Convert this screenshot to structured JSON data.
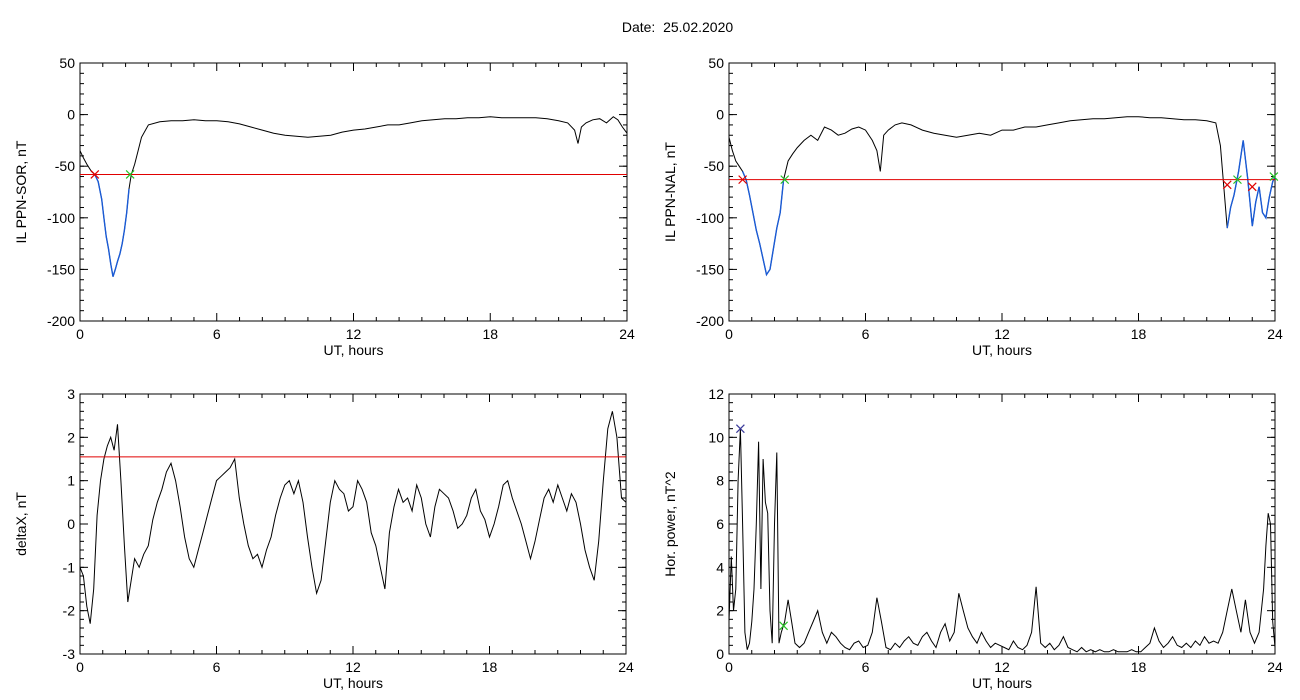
{
  "title": "Date:  25.02.2020",
  "colors": {
    "axis": "#000000",
    "trace": "#000000",
    "substorm_trace": "#1a5bd6",
    "threshold": "#e00000",
    "onset_marker": "#e00000",
    "end_marker": "#22c022",
    "peak_marker": "#3a3a9a"
  },
  "chart_data": [
    {
      "id": "il-sor",
      "type": "line",
      "xlabel": "UT, hours",
      "ylabel": "IL PPN-SOR, nT",
      "xlim": [
        0,
        24
      ],
      "ylim": [
        -200,
        50
      ],
      "xticks": [
        0,
        6,
        12,
        18,
        24
      ],
      "xtick_labels": [
        "0",
        "6",
        "12",
        "18",
        "24"
      ],
      "yticks": [
        -200,
        -150,
        -100,
        -50,
        0,
        50
      ],
      "ytick_labels": [
        "-200",
        "-150",
        "-100",
        "-50",
        "0",
        "50"
      ],
      "threshold": -58,
      "series": [
        {
          "x": [
            0,
            0.15,
            0.3,
            0.5,
            0.65,
            0.8,
            0.95,
            1.05,
            1.15,
            1.25,
            1.35,
            1.45,
            1.55,
            1.65,
            1.75,
            1.85,
            1.95,
            2.05,
            2.15,
            2.25,
            2.4,
            2.55,
            2.7,
            3,
            3.5,
            4,
            4.5,
            5,
            5.5,
            6,
            6.5,
            7,
            7.5,
            8,
            8.5,
            9,
            9.5,
            10,
            10.5,
            11,
            11.5,
            12,
            12.5,
            13,
            13.5,
            14,
            14.5,
            15,
            15.5,
            16,
            16.5,
            17,
            17.5,
            18,
            18.5,
            19,
            19.5,
            20,
            20.5,
            21,
            21.4,
            21.7,
            21.85,
            22,
            22.2,
            22.5,
            22.8,
            23.1,
            23.4,
            23.6,
            23.8,
            24
          ],
          "y": [
            -35,
            -42,
            -48,
            -55,
            -58,
            -65,
            -82,
            -100,
            -118,
            -130,
            -145,
            -157,
            -150,
            -142,
            -135,
            -125,
            -112,
            -95,
            -72,
            -58,
            -48,
            -35,
            -22,
            -10,
            -7,
            -6,
            -6,
            -5,
            -6,
            -6,
            -7,
            -9,
            -12,
            -15,
            -18,
            -20,
            -21,
            -22,
            -21,
            -20,
            -17,
            -15,
            -14,
            -12,
            -10,
            -10,
            -8,
            -6,
            -5,
            -4,
            -4,
            -3,
            -3,
            -2,
            -3,
            -3,
            -3,
            -3,
            -4,
            -6,
            -8,
            -15,
            -28,
            -12,
            -8,
            -5,
            -4,
            -8,
            -2,
            -5,
            -12,
            -18
          ]
        }
      ],
      "markers": [
        {
          "kind": "onset",
          "x": 0.65,
          "y": -58
        },
        {
          "kind": "end",
          "x": 2.2,
          "y": -58
        }
      ],
      "highlight_range": [
        0.65,
        2.2
      ]
    },
    {
      "id": "il-nal",
      "type": "line",
      "xlabel": "UT, hours",
      "ylabel": "IL PPN-NAL, nT",
      "xlim": [
        0,
        24
      ],
      "ylim": [
        -200,
        50
      ],
      "xticks": [
        0,
        6,
        12,
        18,
        24
      ],
      "xtick_labels": [
        "0",
        "6",
        "12",
        "18",
        "24"
      ],
      "yticks": [
        -200,
        -150,
        -100,
        -50,
        0,
        50
      ],
      "ytick_labels": [
        "-200",
        "-150",
        "-100",
        "-50",
        "0",
        "50"
      ],
      "threshold": -63,
      "series": [
        {
          "x": [
            0,
            0.15,
            0.3,
            0.45,
            0.6,
            0.75,
            0.9,
            1.05,
            1.2,
            1.35,
            1.5,
            1.65,
            1.8,
            1.95,
            2.1,
            2.25,
            2.4,
            2.6,
            2.8,
            3,
            3.3,
            3.6,
            3.9,
            4.2,
            4.5,
            4.8,
            5.1,
            5.4,
            5.7,
            6,
            6.3,
            6.5,
            6.65,
            6.8,
            7,
            7.3,
            7.6,
            8,
            8.5,
            9,
            9.5,
            10,
            10.5,
            11,
            11.5,
            12,
            12.5,
            13,
            13.5,
            14,
            14.5,
            15,
            15.5,
            16,
            16.5,
            17,
            17.5,
            18,
            18.5,
            19,
            19.5,
            20,
            20.5,
            21,
            21.4,
            21.6,
            21.75,
            21.9,
            22.05,
            22.2,
            22.4,
            22.6,
            22.8,
            23,
            23.15,
            23.3,
            23.45,
            23.6,
            23.75,
            23.9,
            24
          ],
          "y": [
            -22,
            -35,
            -45,
            -50,
            -55,
            -63,
            -78,
            -95,
            -112,
            -125,
            -140,
            -155,
            -150,
            -130,
            -110,
            -95,
            -63,
            -45,
            -38,
            -32,
            -25,
            -20,
            -25,
            -12,
            -15,
            -20,
            -18,
            -14,
            -12,
            -15,
            -25,
            -35,
            -55,
            -20,
            -15,
            -10,
            -8,
            -10,
            -15,
            -18,
            -20,
            -22,
            -20,
            -18,
            -20,
            -15,
            -15,
            -12,
            -12,
            -10,
            -8,
            -6,
            -5,
            -4,
            -4,
            -3,
            -2,
            -2,
            -3,
            -3,
            -4,
            -5,
            -5,
            -6,
            -8,
            -30,
            -70,
            -110,
            -90,
            -78,
            -55,
            -25,
            -62,
            -108,
            -85,
            -70,
            -95,
            -100,
            -80,
            -65,
            -60
          ]
        }
      ],
      "markers": [
        {
          "kind": "onset",
          "x": 0.6,
          "y": -63
        },
        {
          "kind": "end",
          "x": 2.45,
          "y": -63
        },
        {
          "kind": "onset",
          "x": 21.9,
          "y": -68
        },
        {
          "kind": "end",
          "x": 22.35,
          "y": -63
        },
        {
          "kind": "onset",
          "x": 23.0,
          "y": -70
        },
        {
          "kind": "end",
          "x": 23.95,
          "y": -60
        }
      ],
      "highlight_range": [
        0.6,
        2.45
      ],
      "highlight_range_2": [
        21.9,
        24
      ]
    },
    {
      "id": "deltax",
      "type": "line",
      "xlabel": "UT, hours",
      "ylabel": "deltaX, nT",
      "xlim": [
        0,
        24
      ],
      "ylim": [
        -3,
        3
      ],
      "xticks": [
        0,
        6,
        12,
        18,
        24
      ],
      "xtick_labels": [
        "0",
        "6",
        "12",
        "18",
        "24"
      ],
      "yticks": [
        -3,
        -2,
        -1,
        0,
        1,
        2,
        3
      ],
      "ytick_labels": [
        "-3",
        "-2",
        "-1",
        "0",
        "1",
        "2",
        "3"
      ],
      "threshold": 1.55,
      "series": [
        {
          "x": [
            0,
            0.15,
            0.3,
            0.45,
            0.6,
            0.75,
            0.9,
            1.05,
            1.2,
            1.35,
            1.5,
            1.65,
            1.8,
            1.95,
            2.1,
            2.25,
            2.4,
            2.6,
            2.8,
            3,
            3.2,
            3.4,
            3.6,
            3.8,
            4,
            4.2,
            4.4,
            4.6,
            4.8,
            5,
            5.2,
            5.4,
            5.6,
            5.8,
            6,
            6.2,
            6.4,
            6.6,
            6.8,
            7,
            7.2,
            7.4,
            7.6,
            7.8,
            8,
            8.2,
            8.4,
            8.6,
            8.8,
            9,
            9.2,
            9.4,
            9.6,
            9.8,
            10,
            10.2,
            10.4,
            10.6,
            10.8,
            11,
            11.2,
            11.4,
            11.6,
            11.8,
            12,
            12.2,
            12.4,
            12.6,
            12.8,
            13,
            13.2,
            13.4,
            13.6,
            13.8,
            14,
            14.2,
            14.4,
            14.6,
            14.8,
            15,
            15.2,
            15.4,
            15.6,
            15.8,
            16,
            16.2,
            16.4,
            16.6,
            16.8,
            17,
            17.2,
            17.4,
            17.6,
            17.8,
            18,
            18.2,
            18.4,
            18.6,
            18.8,
            19,
            19.2,
            19.4,
            19.6,
            19.8,
            20,
            20.2,
            20.4,
            20.6,
            20.8,
            21,
            21.2,
            21.4,
            21.6,
            21.8,
            22,
            22.2,
            22.4,
            22.6,
            22.8,
            23,
            23.2,
            23.4,
            23.6,
            23.8,
            24
          ],
          "y": [
            -1.0,
            -1.2,
            -1.9,
            -2.3,
            -1.5,
            0.2,
            1.0,
            1.5,
            1.8,
            2.0,
            1.7,
            2.3,
            1.0,
            -0.5,
            -1.8,
            -1.3,
            -0.8,
            -1.0,
            -0.7,
            -0.5,
            0.1,
            0.5,
            0.8,
            1.2,
            1.4,
            1.0,
            0.4,
            -0.3,
            -0.8,
            -1.0,
            -0.6,
            -0.2,
            0.2,
            0.6,
            1.0,
            1.1,
            1.2,
            1.3,
            1.5,
            0.6,
            0.0,
            -0.5,
            -0.8,
            -0.7,
            -1.0,
            -0.6,
            -0.3,
            0.2,
            0.6,
            0.9,
            1.0,
            0.7,
            1.0,
            0.5,
            -0.3,
            -1.0,
            -1.6,
            -1.3,
            -0.4,
            0.5,
            1.0,
            0.8,
            0.7,
            0.3,
            0.4,
            1.0,
            0.8,
            0.5,
            -0.2,
            -0.5,
            -1.0,
            -1.5,
            -0.2,
            0.4,
            0.8,
            0.5,
            0.6,
            0.3,
            0.9,
            0.6,
            0.0,
            -0.3,
            0.4,
            0.8,
            0.7,
            0.6,
            0.3,
            -0.1,
            0.0,
            0.2,
            0.6,
            0.8,
            0.3,
            0.1,
            -0.3,
            0.0,
            0.4,
            0.9,
            1.0,
            0.6,
            0.3,
            0.0,
            -0.4,
            -0.8,
            -0.4,
            0.1,
            0.6,
            0.8,
            0.5,
            0.9,
            0.6,
            0.3,
            0.7,
            0.5,
            0.0,
            -0.6,
            -1.0,
            -1.3,
            -0.4,
            1.0,
            2.2,
            2.6,
            2.0,
            0.6,
            0.5
          ]
        }
      ],
      "markers": []
    },
    {
      "id": "hor-power",
      "type": "line",
      "xlabel": "UT, hours",
      "ylabel": "Hor. power, nT^2",
      "xlim": [
        0,
        24
      ],
      "ylim": [
        0,
        12
      ],
      "xticks": [
        0,
        6,
        12,
        18,
        24
      ],
      "xtick_labels": [
        "0",
        "6",
        "12",
        "18",
        "24"
      ],
      "yticks": [
        0,
        2,
        4,
        6,
        8,
        10,
        12
      ],
      "ytick_labels": [
        "0",
        "2",
        "4",
        "6",
        "8",
        "10",
        "12"
      ],
      "series": [
        {
          "x": [
            0,
            0.1,
            0.2,
            0.3,
            0.4,
            0.5,
            0.6,
            0.7,
            0.8,
            0.9,
            1.0,
            1.1,
            1.2,
            1.3,
            1.4,
            1.5,
            1.6,
            1.7,
            1.8,
            1.9,
            2.0,
            2.1,
            2.2,
            2.3,
            2.45,
            2.6,
            2.75,
            2.9,
            3.1,
            3.3,
            3.5,
            3.7,
            3.9,
            4.1,
            4.3,
            4.5,
            4.7,
            4.9,
            5.1,
            5.3,
            5.5,
            5.7,
            5.9,
            6.1,
            6.3,
            6.5,
            6.7,
            6.9,
            7.1,
            7.3,
            7.5,
            7.7,
            7.9,
            8.1,
            8.3,
            8.5,
            8.7,
            8.9,
            9.1,
            9.3,
            9.5,
            9.7,
            9.9,
            10.1,
            10.3,
            10.5,
            10.7,
            10.9,
            11.1,
            11.3,
            11.5,
            11.7,
            11.9,
            12.1,
            12.3,
            12.5,
            12.7,
            12.9,
            13.1,
            13.3,
            13.5,
            13.7,
            13.9,
            14.1,
            14.3,
            14.5,
            14.7,
            14.9,
            15.1,
            15.3,
            15.5,
            15.7,
            15.9,
            16.1,
            16.3,
            16.5,
            16.7,
            16.9,
            17.1,
            17.3,
            17.5,
            17.7,
            17.9,
            18.1,
            18.3,
            18.5,
            18.7,
            18.9,
            19.1,
            19.3,
            19.5,
            19.7,
            19.9,
            20.1,
            20.3,
            20.5,
            20.7,
            20.9,
            21.1,
            21.3,
            21.5,
            21.7,
            21.9,
            22.1,
            22.3,
            22.5,
            22.7,
            22.9,
            23.1,
            23.3,
            23.5,
            23.6,
            23.7,
            23.8,
            23.9,
            24
          ],
          "y": [
            1.5,
            4.5,
            2.0,
            3.0,
            8.0,
            10.4,
            6.0,
            1.0,
            0.2,
            0.5,
            1.5,
            3.0,
            6.0,
            9.8,
            3.0,
            9.0,
            7.0,
            6.5,
            2.0,
            0.5,
            6.0,
            9.3,
            0.5,
            1.0,
            1.5,
            2.5,
            1.5,
            0.5,
            0.3,
            0.5,
            1.0,
            1.5,
            2.0,
            1.0,
            0.5,
            1.0,
            0.8,
            0.5,
            0.3,
            0.2,
            0.5,
            0.6,
            0.3,
            0.4,
            1.0,
            2.6,
            1.5,
            0.3,
            0.2,
            0.5,
            0.3,
            0.6,
            0.8,
            0.5,
            0.4,
            0.8,
            1.0,
            0.6,
            0.3,
            1.0,
            1.4,
            0.6,
            1.0,
            2.8,
            2.0,
            1.2,
            0.8,
            0.5,
            1.0,
            0.6,
            0.3,
            0.5,
            0.4,
            0.3,
            0.2,
            0.6,
            0.3,
            0.2,
            0.4,
            1.0,
            3.1,
            0.5,
            0.3,
            0.5,
            0.2,
            0.4,
            0.8,
            0.3,
            0.2,
            0.1,
            0.3,
            0.1,
            0.2,
            0.1,
            0.2,
            0.1,
            0.1,
            0.2,
            0.1,
            0.1,
            0.1,
            0.2,
            0.1,
            0.1,
            0.3,
            0.5,
            1.2,
            0.6,
            0.3,
            0.5,
            0.8,
            0.4,
            0.3,
            0.5,
            0.3,
            0.6,
            0.4,
            0.8,
            0.5,
            0.6,
            0.5,
            1.0,
            2.0,
            3.0,
            2.0,
            1.0,
            2.5,
            1.0,
            0.5,
            1.0,
            3.0,
            5.0,
            6.5,
            6.0,
            1.5,
            0.3
          ]
        }
      ],
      "markers": [
        {
          "kind": "peak",
          "x": 0.5,
          "y": 10.4
        },
        {
          "kind": "end",
          "x": 2.4,
          "y": 1.3
        }
      ]
    }
  ]
}
